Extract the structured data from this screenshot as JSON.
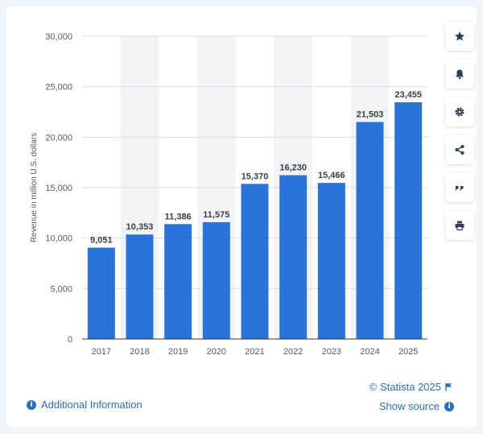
{
  "chart_data": {
    "type": "bar",
    "title": "",
    "xlabel": "",
    "ylabel": "Revenue in million U.S. dollars",
    "categories": [
      "2017",
      "2018",
      "2019",
      "2020",
      "2021",
      "2022",
      "2023",
      "2024",
      "2025"
    ],
    "values": [
      9051,
      10353,
      11386,
      11575,
      15370,
      16230,
      15466,
      21503,
      23455
    ],
    "value_labels": [
      "9,051",
      "10,353",
      "11,386",
      "11,575",
      "15,370",
      "16,230",
      "15,466",
      "21,503",
      "23,455"
    ],
    "ylim": [
      0,
      30000
    ],
    "yticks": [
      0,
      5000,
      10000,
      15000,
      20000,
      25000,
      30000
    ],
    "ytick_labels": [
      "0",
      "5,000",
      "10,000",
      "15,000",
      "20,000",
      "25,000",
      "30,000"
    ],
    "grid": true,
    "colors": {
      "bar": "#2a73d9",
      "band": "#f3f4f6",
      "grid": "#d9dde3",
      "text": "#555b63",
      "label": "#3a3f45"
    }
  },
  "toolbar": {
    "buttons": [
      {
        "icon": "star-icon",
        "name": "favorite-button"
      },
      {
        "icon": "bell-icon",
        "name": "notification-button"
      },
      {
        "icon": "gear-icon",
        "name": "settings-button"
      },
      {
        "icon": "share-icon",
        "name": "share-button"
      },
      {
        "icon": "quote-icon",
        "name": "cite-button"
      },
      {
        "icon": "print-icon",
        "name": "print-button"
      }
    ],
    "icon_color": "#2b3e55"
  },
  "footer": {
    "copyright": "© Statista 2025",
    "additional_info": "Additional Information",
    "show_source": "Show source"
  }
}
